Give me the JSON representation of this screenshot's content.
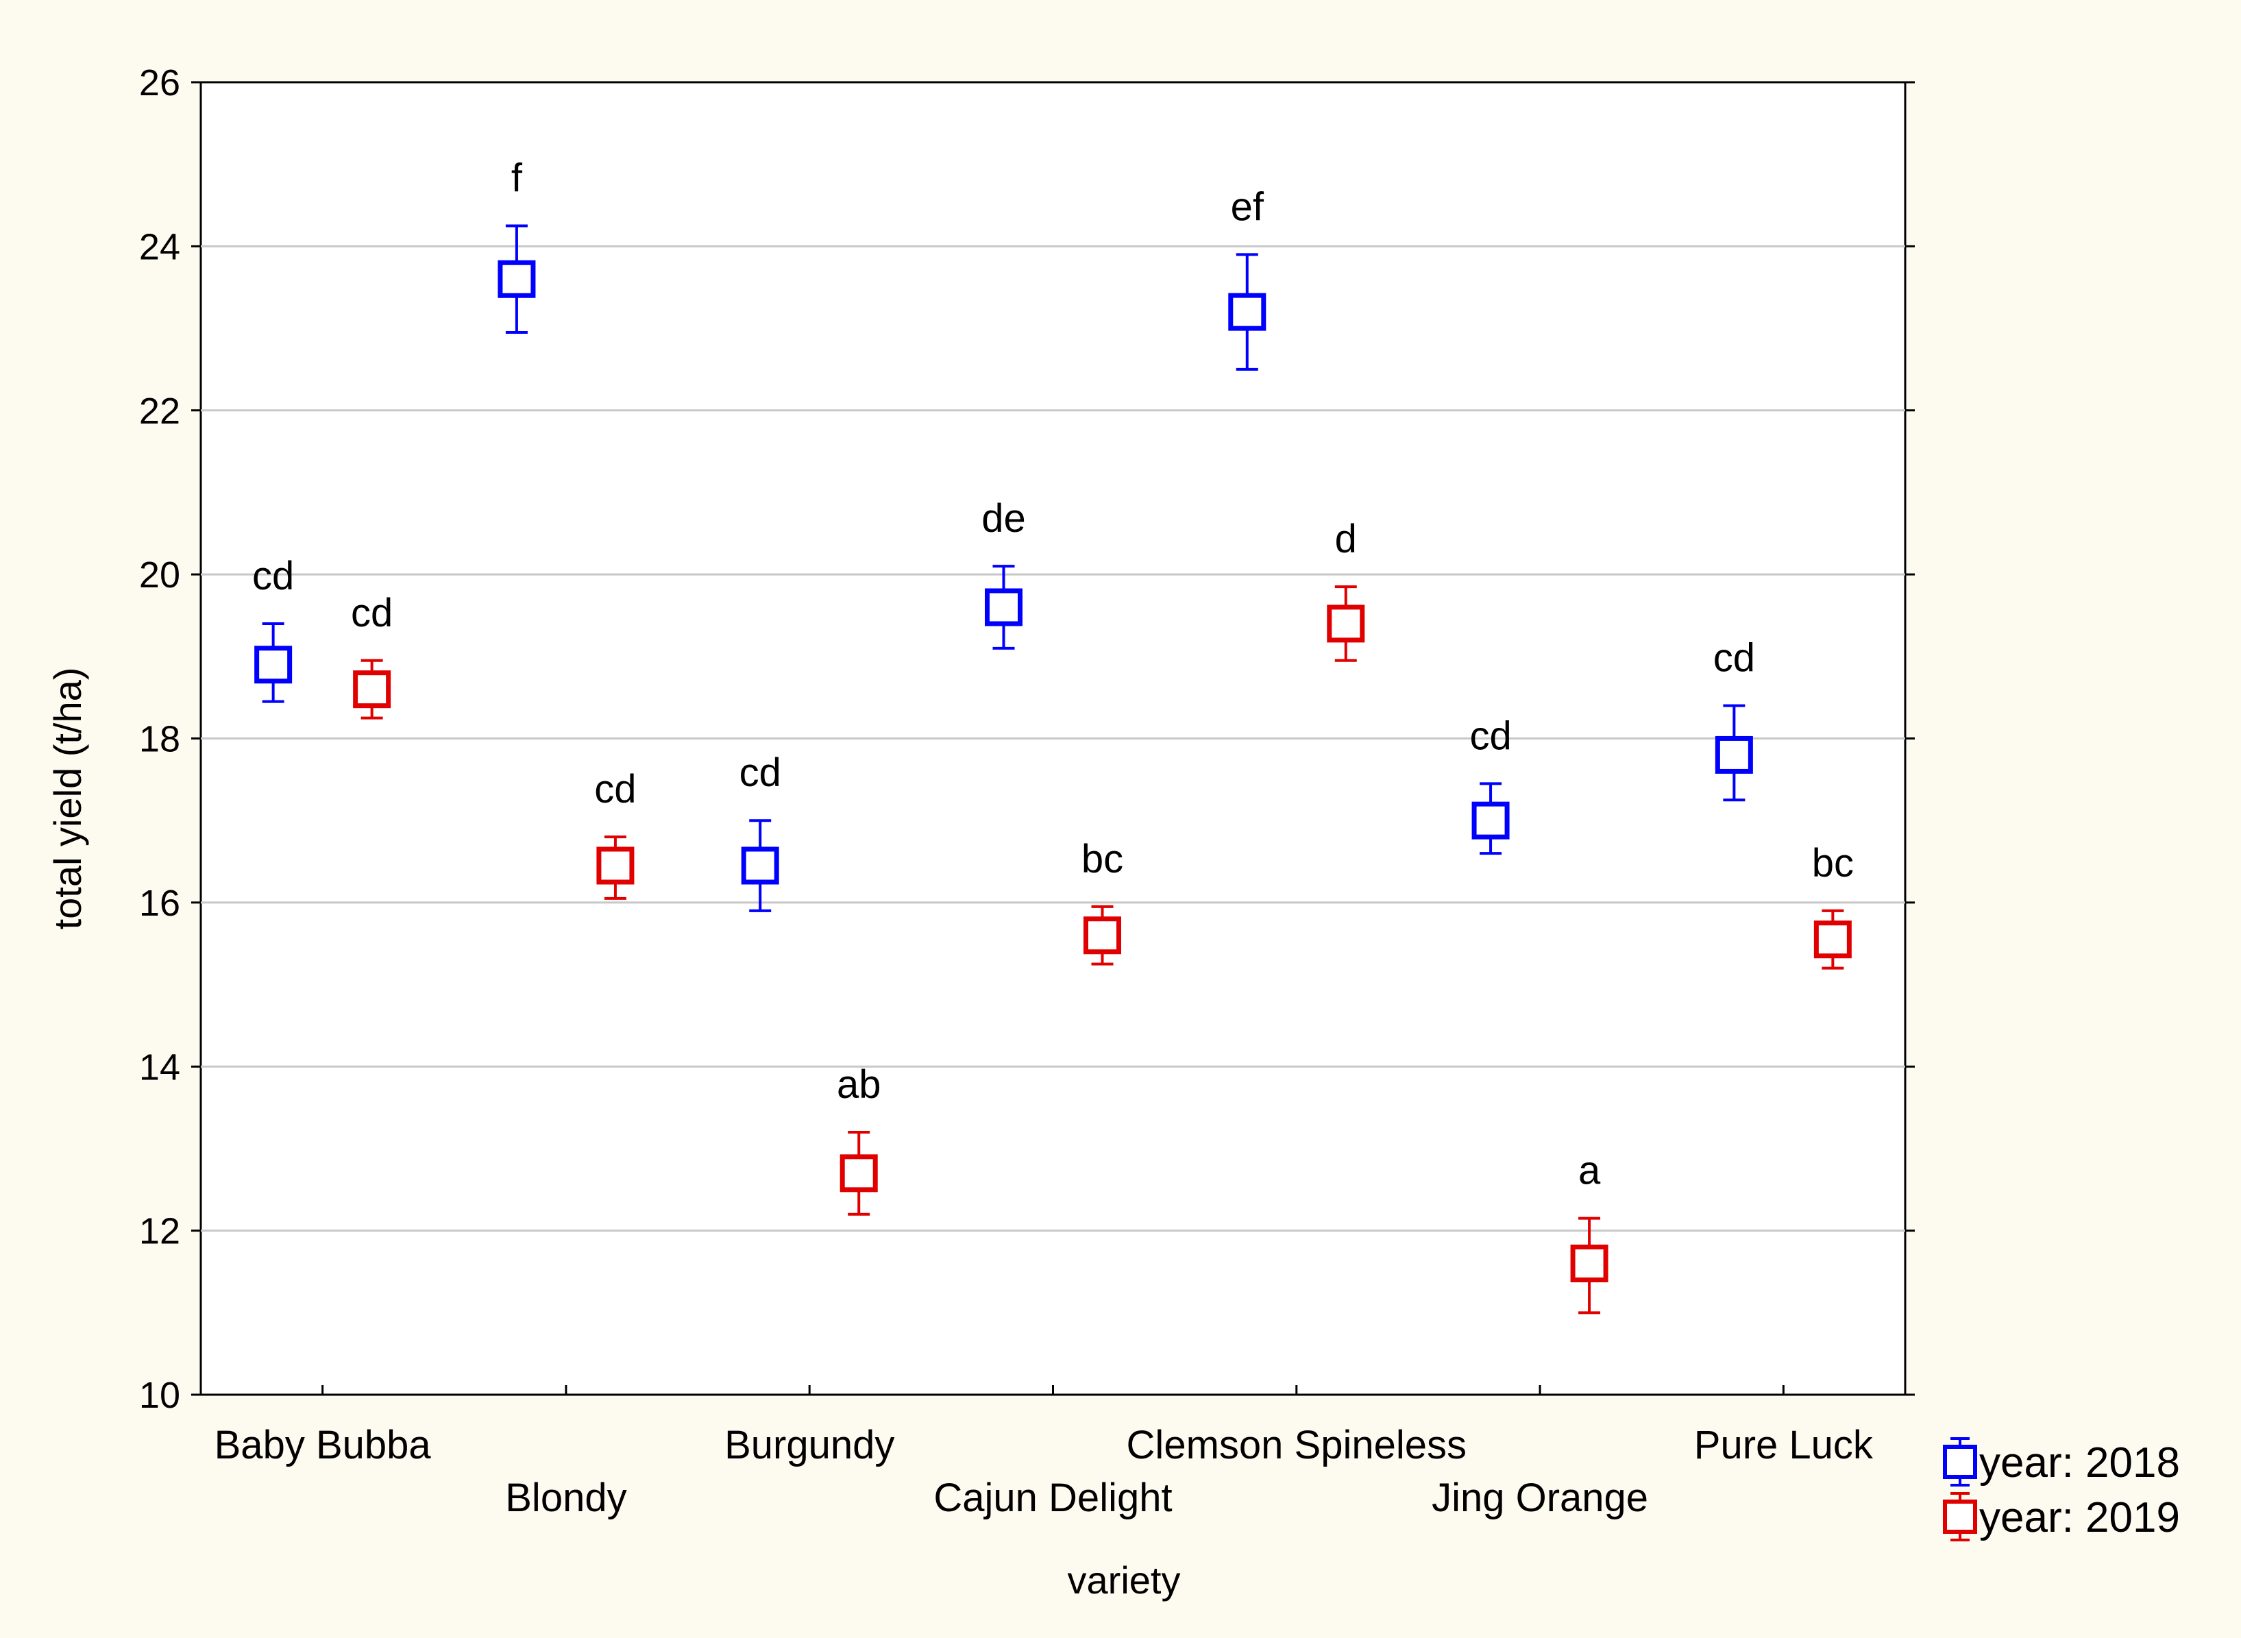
{
  "chart_data": {
    "type": "scatter",
    "xlabel": "variety",
    "ylabel": "total yield (t/ha)",
    "ylim": [
      10,
      26
    ],
    "yticks": [
      10,
      12,
      14,
      16,
      18,
      20,
      22,
      24,
      26
    ],
    "grid": true,
    "legend_position": "bottom-right, outside plot",
    "categories": [
      "Baby Bubba",
      "Blondy",
      "Burgundy",
      "Cajun Delight",
      "Clemson Spineless",
      "Jing Orange",
      "Pure Luck"
    ],
    "series": [
      {
        "name": "year: 2018",
        "color": "#0000ff",
        "values": [
          18.9,
          23.6,
          16.45,
          19.6,
          23.2,
          17.0,
          17.8
        ],
        "err_low": [
          18.45,
          22.95,
          15.9,
          19.1,
          22.5,
          16.6,
          17.25
        ],
        "err_high": [
          19.4,
          24.25,
          17.0,
          20.1,
          23.9,
          17.45,
          18.4
        ],
        "letters": [
          "cd",
          "f",
          "cd",
          "de",
          "ef",
          "cd",
          "cd"
        ]
      },
      {
        "name": "year: 2019",
        "color": "#e00000",
        "values": [
          18.6,
          16.45,
          12.7,
          15.6,
          19.4,
          11.6,
          15.55
        ],
        "err_low": [
          18.25,
          16.05,
          12.2,
          15.25,
          18.95,
          11.0,
          15.2
        ],
        "err_high": [
          18.95,
          16.8,
          13.2,
          15.95,
          19.85,
          12.15,
          15.9
        ],
        "letters": [
          "cd",
          "cd",
          "ab",
          "bc",
          "d",
          "a",
          "bc"
        ]
      }
    ]
  }
}
